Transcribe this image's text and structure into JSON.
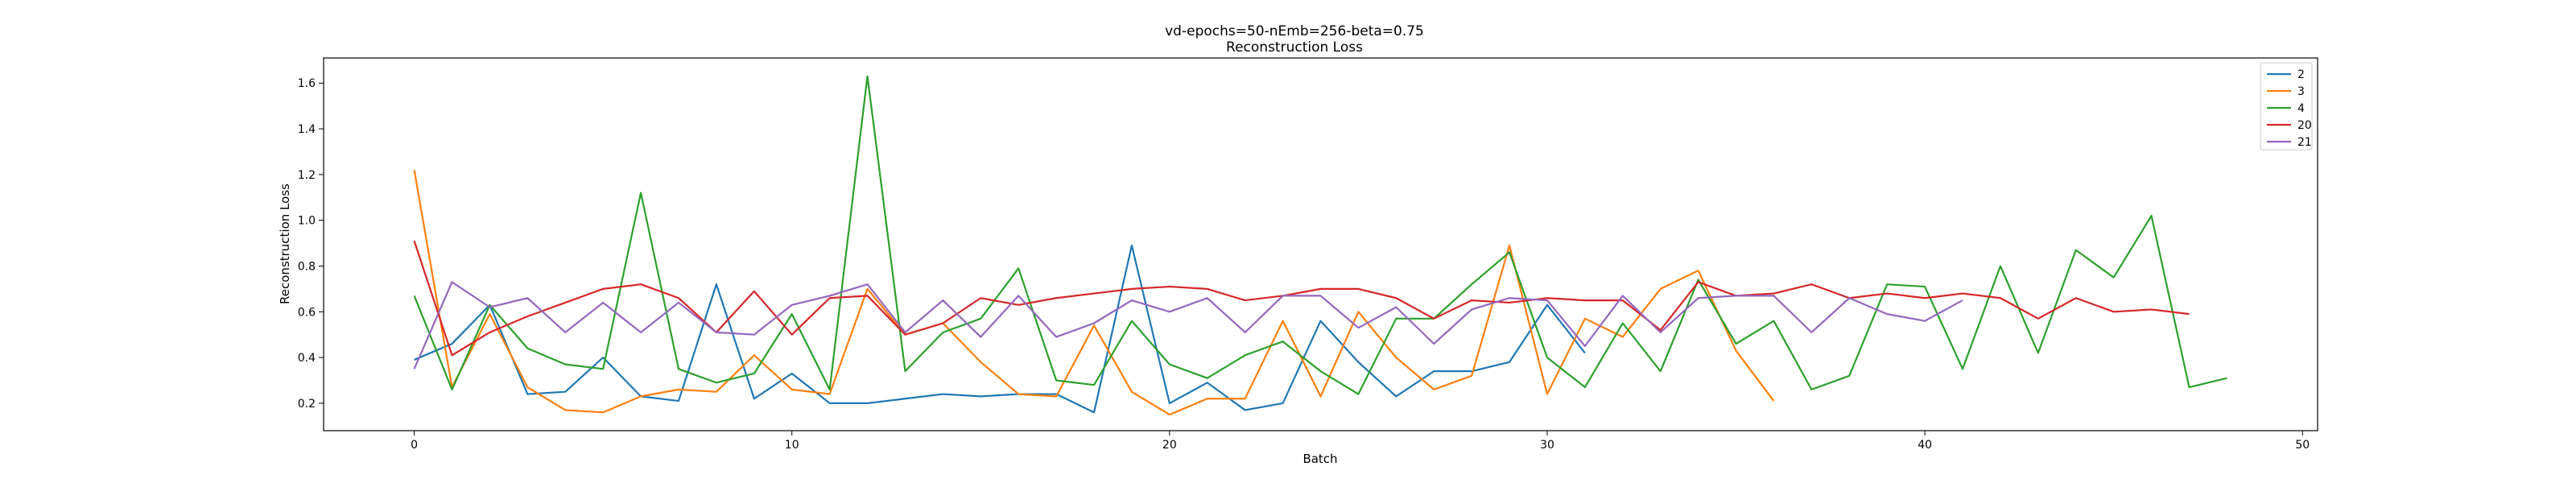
{
  "chart_data": {
    "type": "line",
    "title": "vd-epochs=50-nEmb=256-beta=0.75",
    "subtitle": "Reconstruction Loss",
    "xlabel": "Batch",
    "ylabel": "Reconstruction Loss",
    "xlim": [
      -2.4,
      50.4
    ],
    "ylim": [
      0.08,
      1.71
    ],
    "xticks": [
      0,
      10,
      20,
      30,
      40,
      50
    ],
    "yticks": [
      0.2,
      0.4,
      0.6,
      0.8,
      1.0,
      1.2,
      1.4,
      1.6
    ],
    "grid": false,
    "legend": "top-right",
    "series": [
      {
        "name": "2",
        "color": "#1f77b4",
        "values": [
          0.39,
          0.46,
          0.63,
          0.24,
          0.25,
          0.4,
          0.23,
          0.21,
          0.72,
          0.22,
          0.33,
          0.2,
          0.2,
          0.22,
          0.24,
          0.23,
          0.24,
          0.24,
          0.16,
          0.89,
          0.2,
          0.29,
          0.17,
          0.2,
          0.56,
          0.38,
          0.23,
          0.34,
          0.34,
          0.38,
          0.63,
          0.42
        ]
      },
      {
        "name": "3",
        "color": "#ff7f0e",
        "values": [
          1.22,
          0.27,
          0.59,
          0.27,
          0.17,
          0.16,
          0.23,
          0.26,
          0.25,
          0.41,
          0.26,
          0.24,
          0.7,
          0.5,
          0.55,
          0.38,
          0.24,
          0.23,
          0.54,
          0.25,
          0.15,
          0.22,
          0.22,
          0.56,
          0.23,
          0.6,
          0.4,
          0.26,
          0.32,
          0.89,
          0.24,
          0.57,
          0.49,
          0.7,
          0.78,
          0.43,
          0.21
        ]
      },
      {
        "name": "4",
        "color": "#2ca02c",
        "values": [
          0.67,
          0.26,
          0.63,
          0.44,
          0.37,
          0.35,
          1.12,
          0.35,
          0.29,
          0.33,
          0.59,
          0.26,
          1.63,
          0.34,
          0.51,
          0.57,
          0.79,
          0.3,
          0.28,
          0.56,
          0.37,
          0.31,
          0.41,
          0.47,
          0.34,
          0.24,
          0.57,
          0.57,
          0.72,
          0.86,
          0.4,
          0.27,
          0.55,
          0.34,
          0.74,
          0.46,
          0.56,
          0.26,
          0.32,
          0.72,
          0.71,
          0.35,
          0.8,
          0.42,
          0.87,
          0.75,
          1.02,
          0.27,
          0.31
        ]
      },
      {
        "name": "20",
        "color": "#d62728",
        "values": [
          0.91,
          0.41,
          0.51,
          0.58,
          0.64,
          0.7,
          0.72,
          0.66,
          0.51,
          0.69,
          0.5,
          0.66,
          0.67,
          0.5,
          0.55,
          0.66,
          0.63,
          0.66,
          0.68,
          0.7,
          0.71,
          0.7,
          0.65,
          0.67,
          0.7,
          0.7,
          0.66,
          0.57,
          0.65,
          0.64,
          0.66,
          0.65,
          0.65,
          0.52,
          0.73,
          0.67,
          0.68,
          0.72,
          0.66,
          0.68,
          0.66,
          0.68,
          0.66,
          0.57,
          0.66,
          0.6,
          0.61,
          0.59
        ]
      },
      {
        "name": "21",
        "color": "#9467bd",
        "values": [
          0.35,
          0.73,
          0.62,
          0.66,
          0.51,
          0.64,
          0.51,
          0.64,
          0.51,
          0.5,
          0.63,
          0.67,
          0.72,
          0.51,
          0.65,
          0.49,
          0.67,
          0.49,
          0.55,
          0.65,
          0.6,
          0.66,
          0.51,
          0.67,
          0.67,
          0.53,
          0.62,
          0.46,
          0.61,
          0.66,
          0.65,
          0.45,
          0.67,
          0.51,
          0.66,
          0.67,
          0.67,
          0.51,
          0.66,
          0.59,
          0.56,
          0.65
        ]
      }
    ]
  }
}
